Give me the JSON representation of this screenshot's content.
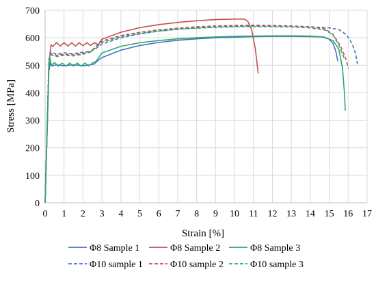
{
  "chart_data": {
    "type": "line",
    "xlabel": "Strain [%]",
    "ylabel": "Stress [MPa]",
    "xlim": [
      0,
      17
    ],
    "ylim": [
      0,
      700
    ],
    "x_ticks": [
      0,
      1,
      2,
      3,
      4,
      5,
      6,
      7,
      8,
      9,
      10,
      11,
      12,
      13,
      14,
      15,
      16,
      17
    ],
    "y_ticks": [
      0,
      100,
      200,
      300,
      400,
      500,
      600,
      700
    ],
    "grid": "on",
    "legend_position": "bottom",
    "series": [
      {
        "name": "Φ8 Sample 1",
        "color": "#4472c4",
        "dash": "solid",
        "points": [
          [
            0,
            0
          ],
          [
            0.1,
            240
          ],
          [
            0.2,
            480
          ],
          [
            0.28,
            510
          ],
          [
            0.35,
            498
          ],
          [
            0.6,
            502
          ],
          [
            1.0,
            498
          ],
          [
            1.5,
            502
          ],
          [
            2.0,
            498
          ],
          [
            2.4,
            502
          ],
          [
            2.6,
            505
          ],
          [
            2.8,
            518
          ],
          [
            3.0,
            528
          ],
          [
            4.0,
            555
          ],
          [
            5.0,
            572
          ],
          [
            6.0,
            583
          ],
          [
            7.0,
            591
          ],
          [
            8.0,
            596
          ],
          [
            9.0,
            600
          ],
          [
            10.0,
            602
          ],
          [
            11.0,
            604
          ],
          [
            12.0,
            605
          ],
          [
            13.0,
            605
          ],
          [
            14.0,
            604
          ],
          [
            14.6,
            603
          ],
          [
            15.0,
            595
          ],
          [
            15.2,
            580
          ],
          [
            15.35,
            550
          ],
          [
            15.45,
            515
          ]
        ]
      },
      {
        "name": "Φ8 Sample 2",
        "color": "#c0504d",
        "dash": "solid",
        "points": [
          [
            0,
            0
          ],
          [
            0.1,
            250
          ],
          [
            0.2,
            500
          ],
          [
            0.28,
            558
          ],
          [
            0.32,
            575
          ],
          [
            0.4,
            568
          ],
          [
            0.6,
            583
          ],
          [
            0.8,
            570
          ],
          [
            1.0,
            582
          ],
          [
            1.2,
            570
          ],
          [
            1.4,
            582
          ],
          [
            1.6,
            570
          ],
          [
            1.8,
            582
          ],
          [
            2.0,
            571
          ],
          [
            2.2,
            582
          ],
          [
            2.4,
            572
          ],
          [
            2.6,
            582
          ],
          [
            2.8,
            575
          ],
          [
            3.0,
            595
          ],
          [
            4.0,
            620
          ],
          [
            5.0,
            637
          ],
          [
            6.0,
            648
          ],
          [
            7.0,
            656
          ],
          [
            8.0,
            662
          ],
          [
            9.0,
            666
          ],
          [
            10.0,
            668
          ],
          [
            10.5,
            668
          ],
          [
            10.7,
            660
          ],
          [
            10.9,
            630
          ],
          [
            11.1,
            560
          ],
          [
            11.25,
            470
          ]
        ]
      },
      {
        "name": "Φ8 Sample 3",
        "color": "#2ea66b",
        "dash": "solid",
        "points": [
          [
            0,
            0
          ],
          [
            0.1,
            250
          ],
          [
            0.2,
            500
          ],
          [
            0.26,
            525
          ],
          [
            0.32,
            500
          ],
          [
            0.5,
            510
          ],
          [
            0.7,
            497
          ],
          [
            0.9,
            508
          ],
          [
            1.1,
            497
          ],
          [
            1.3,
            508
          ],
          [
            1.5,
            497
          ],
          [
            1.7,
            508
          ],
          [
            1.9,
            497
          ],
          [
            2.1,
            508
          ],
          [
            2.3,
            498
          ],
          [
            2.5,
            508
          ],
          [
            2.7,
            515
          ],
          [
            3.0,
            545
          ],
          [
            4.0,
            569
          ],
          [
            5.0,
            582
          ],
          [
            6.0,
            590
          ],
          [
            7.0,
            596
          ],
          [
            8.0,
            600
          ],
          [
            9.0,
            603
          ],
          [
            10.0,
            605
          ],
          [
            11.0,
            606
          ],
          [
            12.0,
            607
          ],
          [
            13.0,
            607
          ],
          [
            14.0,
            606
          ],
          [
            14.7,
            603
          ],
          [
            15.2,
            590
          ],
          [
            15.5,
            560
          ],
          [
            15.7,
            490
          ],
          [
            15.8,
            400
          ],
          [
            15.85,
            335
          ]
        ]
      },
      {
        "name": "Φ10 sample 1",
        "color": "#4472c4",
        "dash": "dashed",
        "points": [
          [
            0,
            0
          ],
          [
            0.1,
            260
          ],
          [
            0.2,
            520
          ],
          [
            0.3,
            548
          ],
          [
            0.6,
            540
          ],
          [
            1.0,
            545
          ],
          [
            1.5,
            542
          ],
          [
            2.0,
            548
          ],
          [
            2.4,
            550
          ],
          [
            2.7,
            562
          ],
          [
            3.0,
            577
          ],
          [
            4.0,
            600
          ],
          [
            5.0,
            614
          ],
          [
            6.0,
            624
          ],
          [
            7.0,
            631
          ],
          [
            8.0,
            636
          ],
          [
            9.0,
            640
          ],
          [
            10.0,
            642
          ],
          [
            11.0,
            643
          ],
          [
            12.0,
            643
          ],
          [
            13.0,
            642
          ],
          [
            14.0,
            640
          ],
          [
            15.0,
            636
          ],
          [
            15.5,
            630
          ],
          [
            15.9,
            612
          ],
          [
            16.2,
            580
          ],
          [
            16.4,
            540
          ],
          [
            16.5,
            500
          ]
        ]
      },
      {
        "name": "Φ10 sample 2",
        "color": "#c0504d",
        "dash": "dashed",
        "points": [
          [
            0,
            0
          ],
          [
            0.1,
            260
          ],
          [
            0.2,
            520
          ],
          [
            0.3,
            542
          ],
          [
            0.6,
            536
          ],
          [
            1.0,
            540
          ],
          [
            1.5,
            538
          ],
          [
            2.0,
            544
          ],
          [
            2.4,
            550
          ],
          [
            2.7,
            570
          ],
          [
            3.0,
            588
          ],
          [
            4.0,
            608
          ],
          [
            5.0,
            620
          ],
          [
            6.0,
            629
          ],
          [
            7.0,
            635
          ],
          [
            8.0,
            640
          ],
          [
            9.0,
            643
          ],
          [
            10.0,
            645
          ],
          [
            11.0,
            646
          ],
          [
            12.0,
            645
          ],
          [
            13.0,
            643
          ],
          [
            14.0,
            640
          ],
          [
            14.8,
            632
          ],
          [
            15.2,
            612
          ],
          [
            15.6,
            570
          ],
          [
            15.9,
            520
          ],
          [
            16.0,
            490
          ]
        ]
      },
      {
        "name": "Φ10 sample 3",
        "color": "#2ea66b",
        "dash": "dashed",
        "points": [
          [
            0,
            0
          ],
          [
            0.1,
            260
          ],
          [
            0.2,
            520
          ],
          [
            0.3,
            538
          ],
          [
            0.6,
            532
          ],
          [
            1.0,
            536
          ],
          [
            1.5,
            534
          ],
          [
            2.0,
            540
          ],
          [
            2.4,
            548
          ],
          [
            2.7,
            566
          ],
          [
            3.0,
            583
          ],
          [
            4.0,
            604
          ],
          [
            5.0,
            616
          ],
          [
            6.0,
            625
          ],
          [
            7.0,
            631
          ],
          [
            8.0,
            635
          ],
          [
            9.0,
            638
          ],
          [
            10.0,
            640
          ],
          [
            11.0,
            641
          ],
          [
            12.0,
            640
          ],
          [
            13.0,
            639
          ],
          [
            14.0,
            636
          ],
          [
            14.8,
            628
          ],
          [
            15.2,
            610
          ],
          [
            15.5,
            575
          ],
          [
            15.7,
            540
          ],
          [
            15.8,
            525
          ]
        ]
      }
    ]
  }
}
